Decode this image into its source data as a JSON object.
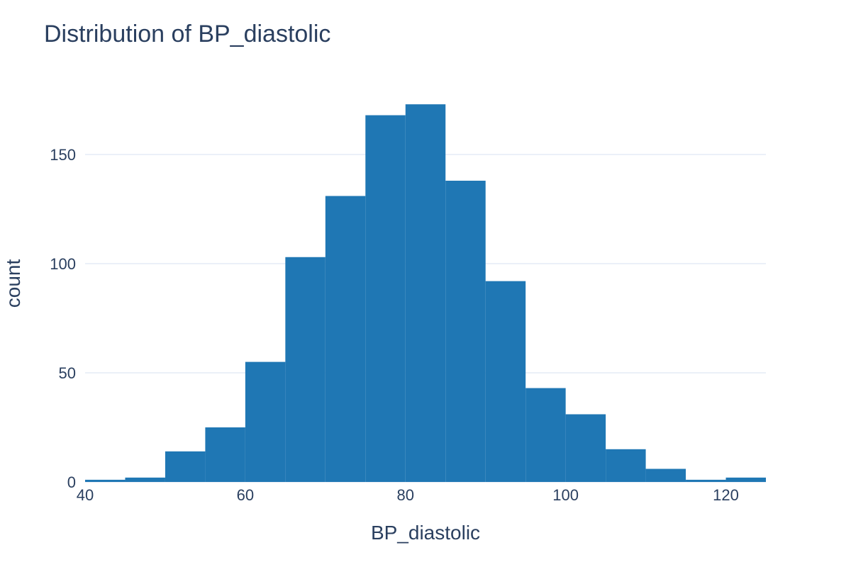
{
  "chart_data": {
    "type": "bar",
    "title": "Distribution of BP_diastolic",
    "xlabel": "BP_diastolic",
    "ylabel": "count",
    "xlim": [
      40,
      125
    ],
    "ylim": [
      0,
      180
    ],
    "bin_width": 5,
    "bins": [
      {
        "start": 40,
        "end": 45,
        "count": 1
      },
      {
        "start": 45,
        "end": 50,
        "count": 2
      },
      {
        "start": 50,
        "end": 55,
        "count": 14
      },
      {
        "start": 55,
        "end": 60,
        "count": 25
      },
      {
        "start": 60,
        "end": 65,
        "count": 55
      },
      {
        "start": 65,
        "end": 70,
        "count": 103
      },
      {
        "start": 70,
        "end": 75,
        "count": 131
      },
      {
        "start": 75,
        "end": 80,
        "count": 168
      },
      {
        "start": 80,
        "end": 85,
        "count": 173
      },
      {
        "start": 85,
        "end": 90,
        "count": 138
      },
      {
        "start": 90,
        "end": 95,
        "count": 92
      },
      {
        "start": 95,
        "end": 100,
        "count": 43
      },
      {
        "start": 100,
        "end": 105,
        "count": 31
      },
      {
        "start": 105,
        "end": 110,
        "count": 15
      },
      {
        "start": 110,
        "end": 115,
        "count": 6
      },
      {
        "start": 115,
        "end": 120,
        "count": 1
      },
      {
        "start": 120,
        "end": 125,
        "count": 2
      }
    ],
    "x_ticks": [
      40,
      60,
      80,
      100,
      120
    ],
    "y_ticks": [
      0,
      50,
      100,
      150
    ],
    "grid": true,
    "colors": {
      "bar": "#1f77b4",
      "text": "#2a3f5f",
      "grid": "#ebf0f8",
      "background": "#ffffff"
    }
  }
}
